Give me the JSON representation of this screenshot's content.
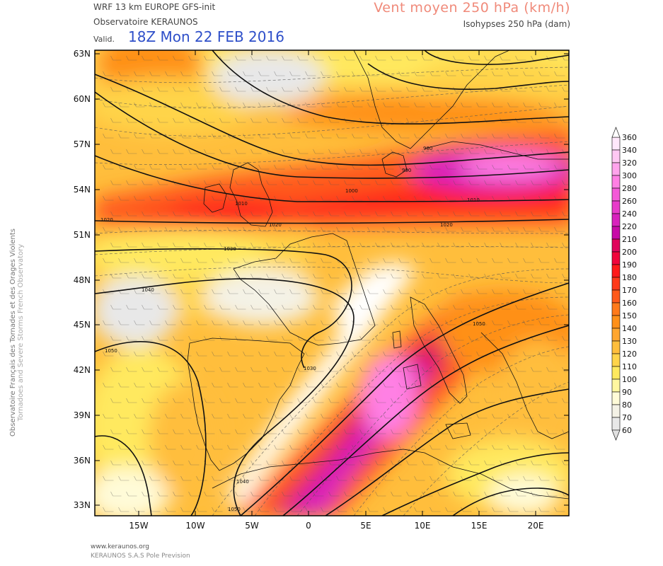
{
  "header": {
    "model": "WRF 13 km EUROPE   GFS-init",
    "observatory": "Observatoire KERAUNOS",
    "valid_label": "Valid.",
    "valid_time": "18Z Mon 22 FEB 2016",
    "variable": "Vent moyen 250 hPa (km/h)",
    "isohypse": "Isohypses 250 hPa (dam)"
  },
  "side_text": {
    "line1": "Observatoire Français des Tornades et des Orages Violents",
    "line2": "Tornadoes and Severe Storms French Observatory"
  },
  "footer": {
    "site": "www.keraunos.org",
    "company": "KERAUNOS S.A.S Pole Prevision"
  },
  "map": {
    "lat_labels": [
      "63N",
      "60N",
      "57N",
      "54N",
      "51N",
      "48N",
      "45N",
      "42N",
      "39N",
      "36N",
      "33N"
    ],
    "lon_labels": [
      "15W",
      "10W",
      "5W",
      "0",
      "5E",
      "10E",
      "15E",
      "20E"
    ],
    "isohypse_labels": [
      "1000",
      "1010",
      "1020",
      "1020",
      "1030",
      "1040",
      "1050",
      "1030",
      "1040",
      "1050",
      "1050",
      "1010",
      "980",
      "990"
    ]
  },
  "legend": {
    "levels": [
      "360",
      "340",
      "320",
      "300",
      "280",
      "260",
      "240",
      "220",
      "210",
      "200",
      "190",
      "180",
      "170",
      "160",
      "150",
      "140",
      "130",
      "120",
      "110",
      "100",
      "90",
      "80",
      "70",
      "60"
    ],
    "colors": [
      "#ffe8fb",
      "#ffc8f3",
      "#ffa4ec",
      "#ff80e4",
      "#f45ad8",
      "#e83cca",
      "#d822bd",
      "#c80aa8",
      "#e0055c",
      "#f0053c",
      "#ff1a1a",
      "#ff3a1a",
      "#ff5a1a",
      "#ff7a1a",
      "#ff9019",
      "#ffa630",
      "#ffbe3c",
      "#ffd44a",
      "#ffe95e",
      "#fff7a0",
      "#fffbd8",
      "#f4f2e6",
      "#e8e8e8"
    ]
  }
}
